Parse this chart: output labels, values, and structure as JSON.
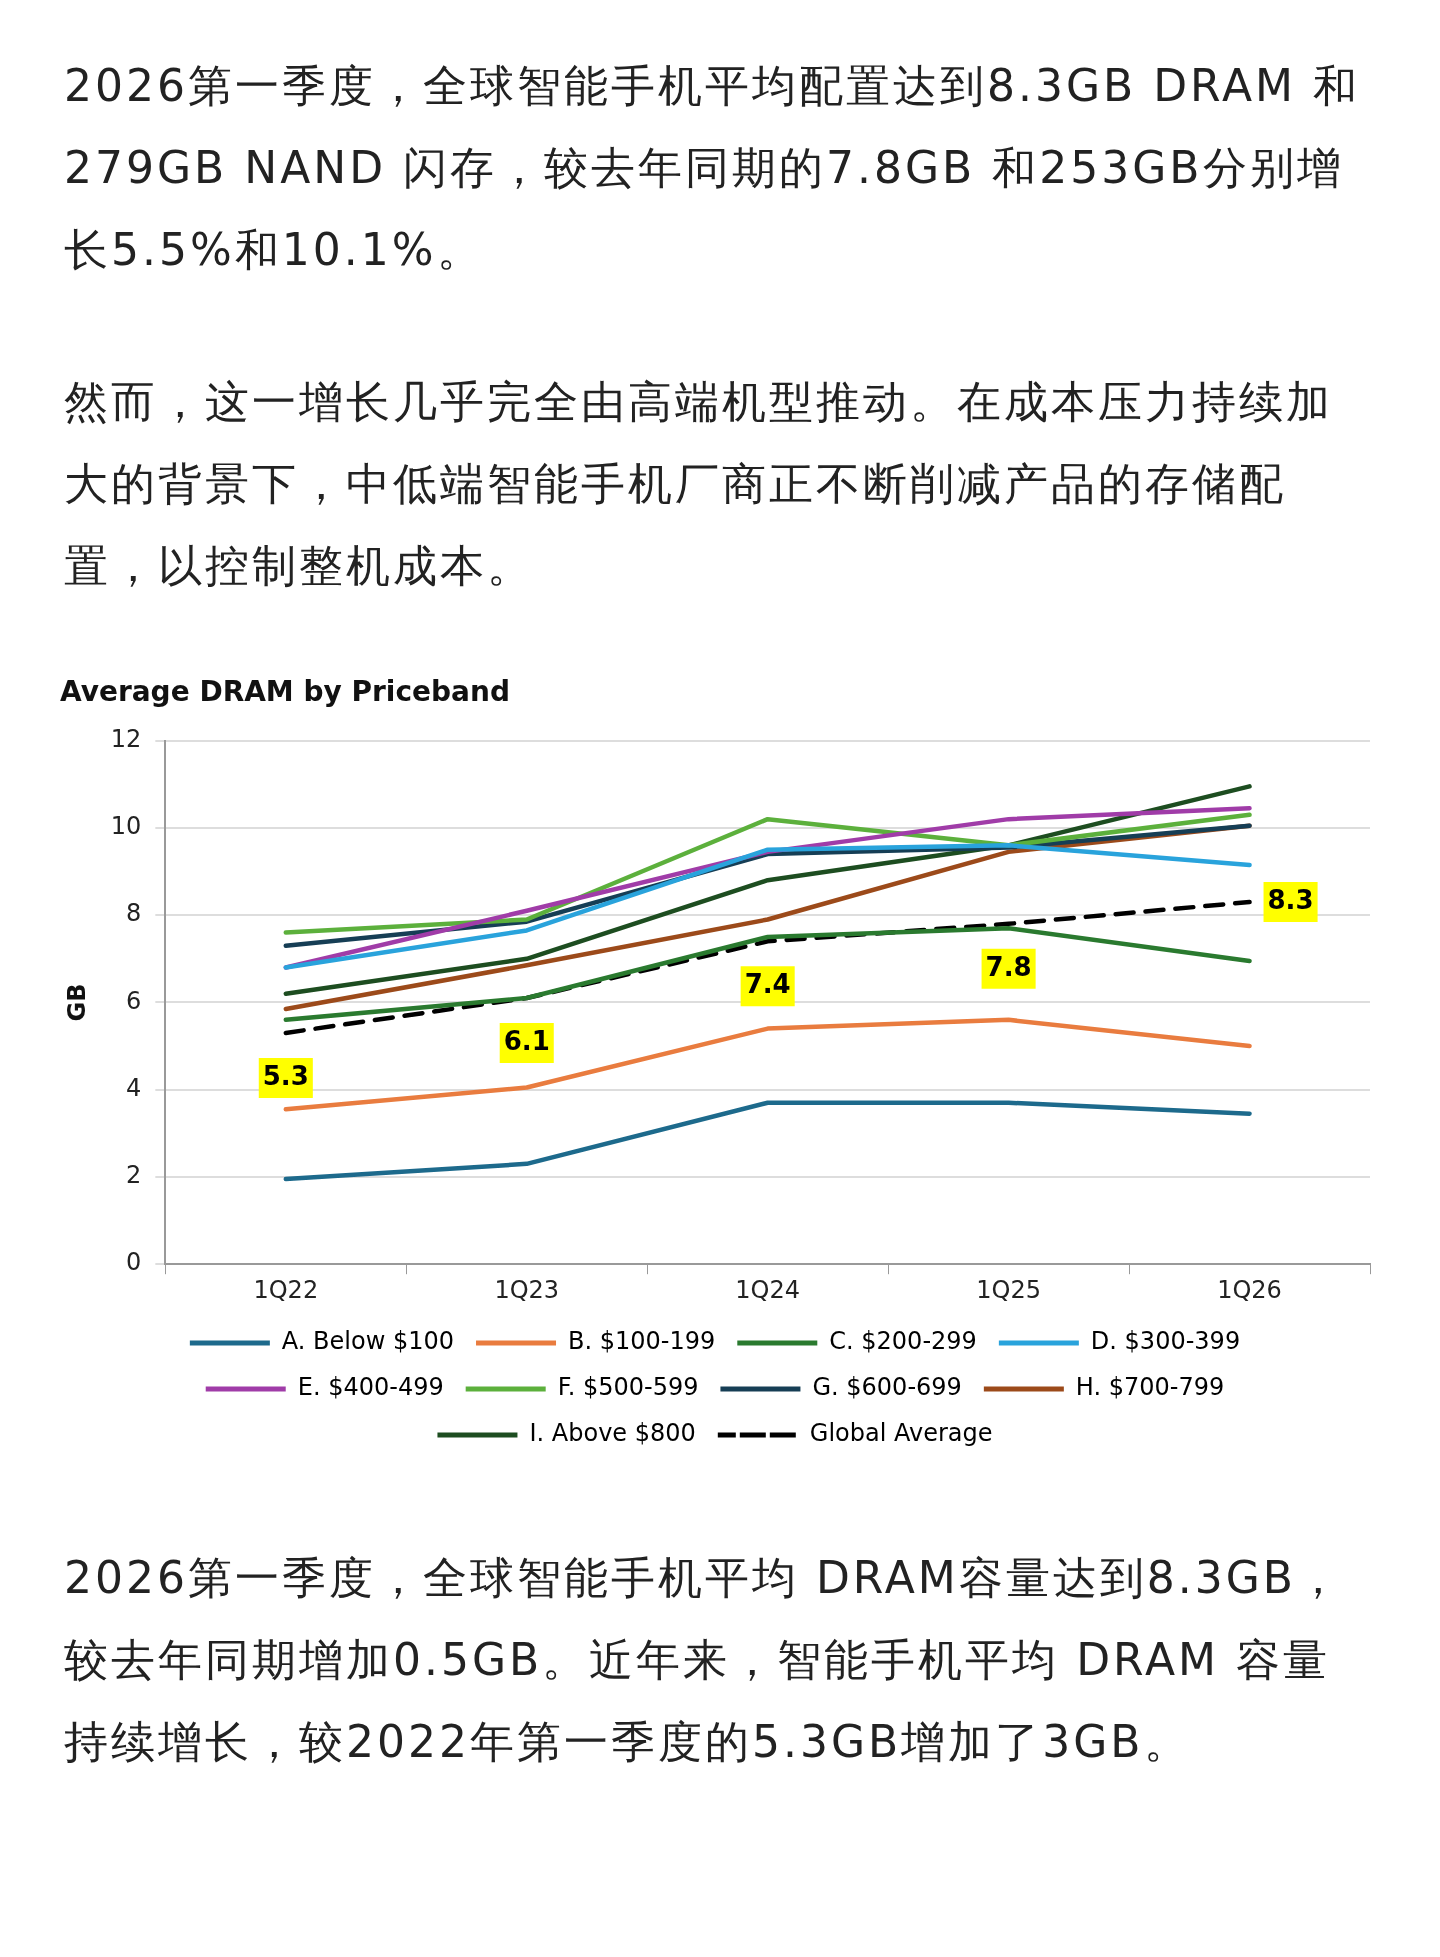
{
  "chart_data": {
    "type": "line",
    "title": "Average DRAM by Priceband",
    "ylabel": "GB",
    "categories": [
      "1Q22",
      "1Q23",
      "1Q24",
      "1Q25",
      "1Q26"
    ],
    "series": [
      {
        "name": "A. Below $100",
        "color": "#1d6a8c",
        "values": [
          1.95,
          2.3,
          3.7,
          3.7,
          3.45
        ]
      },
      {
        "name": "B. $100-199",
        "color": "#e97c3f",
        "values": [
          3.55,
          4.05,
          5.4,
          5.6,
          5.0
        ]
      },
      {
        "name": "C. $200-299",
        "color": "#2a7a2f",
        "values": [
          5.6,
          6.1,
          7.5,
          7.7,
          6.95
        ]
      },
      {
        "name": "D. $300-399",
        "color": "#29a3dc",
        "values": [
          6.8,
          7.65,
          9.5,
          9.6,
          9.15
        ]
      },
      {
        "name": "E. $400-499",
        "color": "#a03ca8",
        "values": [
          6.8,
          8.1,
          9.45,
          10.2,
          10.45
        ]
      },
      {
        "name": "F. $500-599",
        "color": "#5cb03c",
        "values": [
          7.6,
          7.9,
          10.2,
          9.6,
          10.3
        ]
      },
      {
        "name": "G. $600-699",
        "color": "#163e55",
        "values": [
          7.3,
          7.85,
          9.4,
          9.55,
          10.05
        ]
      },
      {
        "name": "H. $700-799",
        "color": "#9c4a1a",
        "values": [
          5.85,
          6.85,
          7.9,
          9.45,
          10.05
        ]
      },
      {
        "name": "I. Above $800",
        "color": "#1d4d20",
        "values": [
          6.2,
          7.0,
          8.8,
          9.6,
          10.95
        ]
      },
      {
        "name": "Global Average",
        "color": "#000000",
        "line_style": "dashed",
        "values": [
          5.3,
          6.1,
          7.4,
          7.8,
          8.3
        ],
        "value_labels": [
          "5.3",
          "6.1",
          "7.4",
          "7.8",
          "8.3"
        ]
      }
    ],
    "ylim": [
      0,
      12
    ],
    "yticks": [
      0,
      2,
      4,
      6,
      8,
      10,
      12
    ],
    "grid": "y",
    "legend": "bottom",
    "marker": "none",
    "line_style": "solid",
    "annotations": [
      "2026第一季度，全球智能手机平均配置达到8.3GB DRAM 和279GB NAND 闪存，较去年同期的7.8GB 和253GB分别增长5.5%和10.1%。",
      "然而，这一增长几乎完全由高端机型推动。在成本压力持续加大的背景下，中低端智能手机厂商正不断削减产品的存储配置，以控制整机成本。",
      "2026第一季度，全球智能手机平均 DRAM容量达到8.3GB，较去年同期增加0.5GB。近年来，智能手机平均 DRAM 容量持续增长，较2022年第一季度的5.3GB增加了3GB。"
    ]
  }
}
